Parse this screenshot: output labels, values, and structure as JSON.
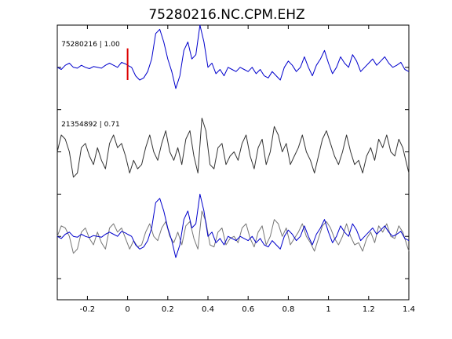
{
  "chart_data": {
    "type": "line",
    "title": "75280216.NC.CPM.EHZ",
    "xlabel": "",
    "ylabel": "",
    "xlim": [
      -0.35,
      1.4
    ],
    "ylim": [
      0,
      6.5
    ],
    "grid": false,
    "x_ticks": [
      -0.2,
      0,
      0.2,
      0.4,
      0.6,
      0.8,
      1,
      1.2,
      1.4
    ],
    "x_tick_labels": [
      "-0.2",
      "0",
      "0.2",
      "0.4",
      "0.6",
      "0.8",
      "1",
      "1.2",
      "1.4"
    ],
    "y_ticks": [
      0.5,
      1.5,
      2.5,
      3.5,
      4.5,
      5.5
    ],
    "pick_marker": {
      "x": 0,
      "y_range": [
        5.2,
        5.95
      ],
      "color": "#dd0000"
    },
    "labels": [
      {
        "text": "75280216 | 1.00",
        "x": -0.33,
        "y": 6.0
      },
      {
        "text": "21354892 | 0.71",
        "x": -0.33,
        "y": 4.1
      }
    ],
    "series": [
      {
        "role": "trace-1",
        "color": "#0000cc",
        "x": [
          -0.35,
          -0.33,
          -0.31,
          -0.29,
          -0.27,
          -0.25,
          -0.23,
          -0.21,
          -0.19,
          -0.17,
          -0.15,
          -0.13,
          -0.11,
          -0.09,
          -0.07,
          -0.05,
          -0.03,
          -0.01,
          0.0,
          0.02,
          0.04,
          0.06,
          0.08,
          0.1,
          0.12,
          0.14,
          0.16,
          0.18,
          0.2,
          0.22,
          0.24,
          0.26,
          0.28,
          0.3,
          0.32,
          0.34,
          0.36,
          0.38,
          0.4,
          0.42,
          0.44,
          0.46,
          0.48,
          0.5,
          0.52,
          0.54,
          0.56,
          0.58,
          0.6,
          0.62,
          0.64,
          0.66,
          0.68,
          0.7,
          0.72,
          0.74,
          0.76,
          0.78,
          0.8,
          0.82,
          0.84,
          0.86,
          0.88,
          0.9,
          0.92,
          0.94,
          0.96,
          0.98,
          1.0,
          1.02,
          1.04,
          1.06,
          1.08,
          1.1,
          1.12,
          1.14,
          1.16,
          1.18,
          1.2,
          1.22,
          1.24,
          1.26,
          1.28,
          1.3,
          1.32,
          1.34,
          1.36,
          1.38,
          1.4
        ],
        "y": [
          5.5,
          5.45,
          5.55,
          5.6,
          5.5,
          5.48,
          5.55,
          5.5,
          5.47,
          5.52,
          5.5,
          5.48,
          5.55,
          5.6,
          5.55,
          5.5,
          5.62,
          5.58,
          5.55,
          5.5,
          5.3,
          5.2,
          5.25,
          5.4,
          5.7,
          6.3,
          6.4,
          6.1,
          5.7,
          5.4,
          5.0,
          5.3,
          5.9,
          6.1,
          5.7,
          5.8,
          6.5,
          6.1,
          5.5,
          5.6,
          5.35,
          5.45,
          5.3,
          5.5,
          5.45,
          5.4,
          5.5,
          5.45,
          5.4,
          5.5,
          5.35,
          5.45,
          5.3,
          5.25,
          5.4,
          5.3,
          5.2,
          5.5,
          5.65,
          5.55,
          5.4,
          5.5,
          5.75,
          5.5,
          5.3,
          5.55,
          5.7,
          5.9,
          5.6,
          5.35,
          5.5,
          5.75,
          5.6,
          5.5,
          5.8,
          5.65,
          5.4,
          5.5,
          5.6,
          5.7,
          5.55,
          5.65,
          5.75,
          5.6,
          5.5,
          5.55,
          5.62,
          5.45,
          5.4
        ]
      },
      {
        "role": "trace-2",
        "color": "#333333",
        "x": [
          -0.35,
          -0.33,
          -0.31,
          -0.29,
          -0.27,
          -0.25,
          -0.23,
          -0.21,
          -0.19,
          -0.17,
          -0.15,
          -0.13,
          -0.11,
          -0.09,
          -0.07,
          -0.05,
          -0.03,
          -0.01,
          0.01,
          0.03,
          0.05,
          0.07,
          0.09,
          0.11,
          0.13,
          0.15,
          0.17,
          0.19,
          0.21,
          0.23,
          0.25,
          0.27,
          0.29,
          0.31,
          0.33,
          0.35,
          0.37,
          0.39,
          0.41,
          0.43,
          0.45,
          0.47,
          0.49,
          0.51,
          0.53,
          0.55,
          0.57,
          0.59,
          0.61,
          0.63,
          0.65,
          0.67,
          0.69,
          0.71,
          0.73,
          0.75,
          0.77,
          0.79,
          0.81,
          0.83,
          0.85,
          0.87,
          0.89,
          0.91,
          0.93,
          0.95,
          0.97,
          0.99,
          1.01,
          1.03,
          1.05,
          1.07,
          1.09,
          1.11,
          1.13,
          1.15,
          1.17,
          1.19,
          1.21,
          1.23,
          1.25,
          1.27,
          1.29,
          1.31,
          1.33,
          1.35,
          1.37,
          1.39,
          1.4
        ],
        "y": [
          3.5,
          3.9,
          3.8,
          3.5,
          2.9,
          3.0,
          3.6,
          3.7,
          3.4,
          3.2,
          3.6,
          3.3,
          3.1,
          3.7,
          3.9,
          3.6,
          3.7,
          3.4,
          3.0,
          3.3,
          3.1,
          3.2,
          3.6,
          3.9,
          3.5,
          3.3,
          3.7,
          4.0,
          3.5,
          3.3,
          3.6,
          3.2,
          3.8,
          4.0,
          3.4,
          3.0,
          4.3,
          4.0,
          3.2,
          3.1,
          3.6,
          3.7,
          3.2,
          3.4,
          3.5,
          3.3,
          3.7,
          3.9,
          3.4,
          3.1,
          3.6,
          3.8,
          3.2,
          3.5,
          4.1,
          3.9,
          3.5,
          3.7,
          3.2,
          3.4,
          3.6,
          3.9,
          3.5,
          3.3,
          3.0,
          3.4,
          3.8,
          4.0,
          3.7,
          3.4,
          3.2,
          3.5,
          3.9,
          3.5,
          3.2,
          3.3,
          3.0,
          3.4,
          3.6,
          3.3,
          3.8,
          3.6,
          3.9,
          3.5,
          3.4,
          3.8,
          3.6,
          3.2,
          3.0
        ]
      },
      {
        "role": "overlay-blue",
        "color": "#0000cc",
        "x": [
          -0.35,
          -0.33,
          -0.31,
          -0.29,
          -0.27,
          -0.25,
          -0.23,
          -0.21,
          -0.19,
          -0.17,
          -0.15,
          -0.13,
          -0.11,
          -0.09,
          -0.07,
          -0.05,
          -0.03,
          -0.01,
          0.0,
          0.02,
          0.04,
          0.06,
          0.08,
          0.1,
          0.12,
          0.14,
          0.16,
          0.18,
          0.2,
          0.22,
          0.24,
          0.26,
          0.28,
          0.3,
          0.32,
          0.34,
          0.36,
          0.38,
          0.4,
          0.42,
          0.44,
          0.46,
          0.48,
          0.5,
          0.52,
          0.54,
          0.56,
          0.58,
          0.6,
          0.62,
          0.64,
          0.66,
          0.68,
          0.7,
          0.72,
          0.74,
          0.76,
          0.78,
          0.8,
          0.82,
          0.84,
          0.86,
          0.88,
          0.9,
          0.92,
          0.94,
          0.96,
          0.98,
          1.0,
          1.02,
          1.04,
          1.06,
          1.08,
          1.1,
          1.12,
          1.14,
          1.16,
          1.18,
          1.2,
          1.22,
          1.24,
          1.26,
          1.28,
          1.3,
          1.32,
          1.34,
          1.36,
          1.38,
          1.4
        ],
        "y": [
          1.5,
          1.45,
          1.55,
          1.6,
          1.5,
          1.48,
          1.55,
          1.5,
          1.47,
          1.52,
          1.5,
          1.48,
          1.55,
          1.6,
          1.55,
          1.5,
          1.62,
          1.58,
          1.55,
          1.5,
          1.3,
          1.2,
          1.25,
          1.4,
          1.7,
          2.3,
          2.4,
          2.1,
          1.7,
          1.4,
          1.0,
          1.3,
          1.9,
          2.1,
          1.7,
          1.8,
          2.5,
          2.1,
          1.5,
          1.6,
          1.35,
          1.45,
          1.3,
          1.5,
          1.45,
          1.4,
          1.5,
          1.45,
          1.4,
          1.5,
          1.35,
          1.45,
          1.3,
          1.25,
          1.4,
          1.3,
          1.2,
          1.5,
          1.65,
          1.55,
          1.4,
          1.5,
          1.75,
          1.5,
          1.3,
          1.55,
          1.7,
          1.9,
          1.6,
          1.35,
          1.5,
          1.75,
          1.6,
          1.5,
          1.8,
          1.65,
          1.4,
          1.5,
          1.6,
          1.7,
          1.55,
          1.65,
          1.75,
          1.6,
          1.5,
          1.55,
          1.62,
          1.45,
          1.4
        ]
      },
      {
        "role": "overlay-gray",
        "color": "#777777",
        "x": [
          -0.35,
          -0.33,
          -0.31,
          -0.29,
          -0.27,
          -0.25,
          -0.23,
          -0.21,
          -0.19,
          -0.17,
          -0.15,
          -0.13,
          -0.11,
          -0.09,
          -0.07,
          -0.05,
          -0.03,
          -0.01,
          0.01,
          0.03,
          0.05,
          0.07,
          0.09,
          0.11,
          0.13,
          0.15,
          0.17,
          0.19,
          0.21,
          0.23,
          0.25,
          0.27,
          0.29,
          0.31,
          0.33,
          0.35,
          0.37,
          0.39,
          0.41,
          0.43,
          0.45,
          0.47,
          0.49,
          0.51,
          0.53,
          0.55,
          0.57,
          0.59,
          0.61,
          0.63,
          0.65,
          0.67,
          0.69,
          0.71,
          0.73,
          0.75,
          0.77,
          0.79,
          0.81,
          0.83,
          0.85,
          0.87,
          0.89,
          0.91,
          0.93,
          0.95,
          0.97,
          0.99,
          1.01,
          1.03,
          1.05,
          1.07,
          1.09,
          1.11,
          1.13,
          1.15,
          1.17,
          1.19,
          1.21,
          1.23,
          1.25,
          1.27,
          1.29,
          1.31,
          1.33,
          1.35,
          1.37,
          1.39,
          1.4
        ],
        "y": [
          1.5,
          1.75,
          1.7,
          1.5,
          1.1,
          1.2,
          1.6,
          1.7,
          1.45,
          1.3,
          1.6,
          1.35,
          1.2,
          1.7,
          1.8,
          1.6,
          1.7,
          1.45,
          1.2,
          1.4,
          1.25,
          1.3,
          1.6,
          1.8,
          1.5,
          1.4,
          1.7,
          1.85,
          1.5,
          1.35,
          1.6,
          1.3,
          1.75,
          1.85,
          1.45,
          1.2,
          2.1,
          1.85,
          1.3,
          1.25,
          1.6,
          1.7,
          1.3,
          1.45,
          1.5,
          1.35,
          1.7,
          1.8,
          1.45,
          1.25,
          1.6,
          1.75,
          1.3,
          1.5,
          1.9,
          1.8,
          1.5,
          1.7,
          1.3,
          1.45,
          1.6,
          1.8,
          1.5,
          1.35,
          1.15,
          1.45,
          1.75,
          1.85,
          1.7,
          1.45,
          1.3,
          1.5,
          1.8,
          1.5,
          1.3,
          1.35,
          1.15,
          1.45,
          1.6,
          1.35,
          1.75,
          1.6,
          1.8,
          1.5,
          1.45,
          1.75,
          1.6,
          1.3,
          1.15
        ]
      }
    ]
  }
}
